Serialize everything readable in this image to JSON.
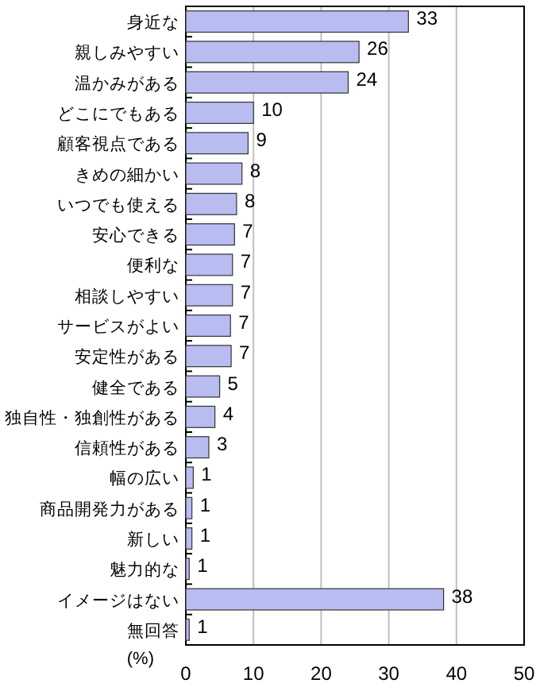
{
  "chart_data": {
    "type": "bar",
    "orientation": "horizontal",
    "categories": [
      "身近な",
      "親しみやすい",
      "温かみがある",
      "どこにでもある",
      "顧客視点である",
      "きめの細かい",
      "いつでも使える",
      "安心できる",
      "便利な",
      "相談しやすい",
      "サービスがよい",
      "安定性がある",
      "健全である",
      "独自性・独創性がある",
      "信頼性がある",
      "幅の広い",
      "商品開発力がある",
      "新しい",
      "魅力的な",
      "イメージはない",
      "無回答"
    ],
    "values": [
      32.9,
      25.6,
      24.0,
      10.0,
      9.2,
      8.3,
      7.5,
      7.2,
      6.9,
      6.9,
      6.6,
      6.7,
      5.0,
      4.3,
      3.4,
      1.1,
      0.9,
      0.9,
      0.5,
      38.1,
      0.5
    ],
    "value_labels": [
      "33",
      "26",
      "24",
      "10",
      "9",
      "8",
      "8",
      "7",
      "7",
      "7",
      "7",
      "7",
      "5",
      "4",
      "3",
      "1",
      "1",
      "1",
      "1",
      "38",
      "1"
    ],
    "color": "#b8bcf0",
    "xlim": [
      0,
      50
    ],
    "xticks": [
      0,
      10,
      20,
      30,
      40,
      50
    ],
    "grid": "x",
    "xlabel": "(%)"
  }
}
